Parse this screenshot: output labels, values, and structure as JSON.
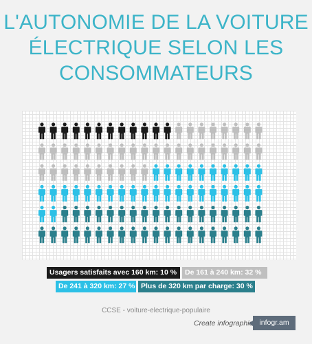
{
  "title_lines": [
    "L'AUTONOMIE DE LA VOITURE",
    "ÉLECTRIQUE SELON LES",
    "CONSOMMATEURS"
  ],
  "chart_data": {
    "type": "pictogram",
    "total_icons": 120,
    "columns": 20,
    "rows": 6,
    "icon_name": "person-icon",
    "series": [
      {
        "name": "Usagers satisfaits avec 160 km: 10 %",
        "value": 10,
        "color": "#1a1a1a"
      },
      {
        "name": "De 161 à 240 km: 32 %",
        "value": 32,
        "color": "#bfbfbf"
      },
      {
        "name": "De 241 à 320 km: 27 %",
        "value": 27,
        "color": "#2cc0e6"
      },
      {
        "name": "Plus de 320 km par charge: 30 %",
        "value": 30,
        "color": "#2b7f8c"
      }
    ]
  },
  "source": "CCSE - voiture-electrique-populaire",
  "footer": {
    "create_label": "Create infographics",
    "logo_text": "infogr.am"
  }
}
